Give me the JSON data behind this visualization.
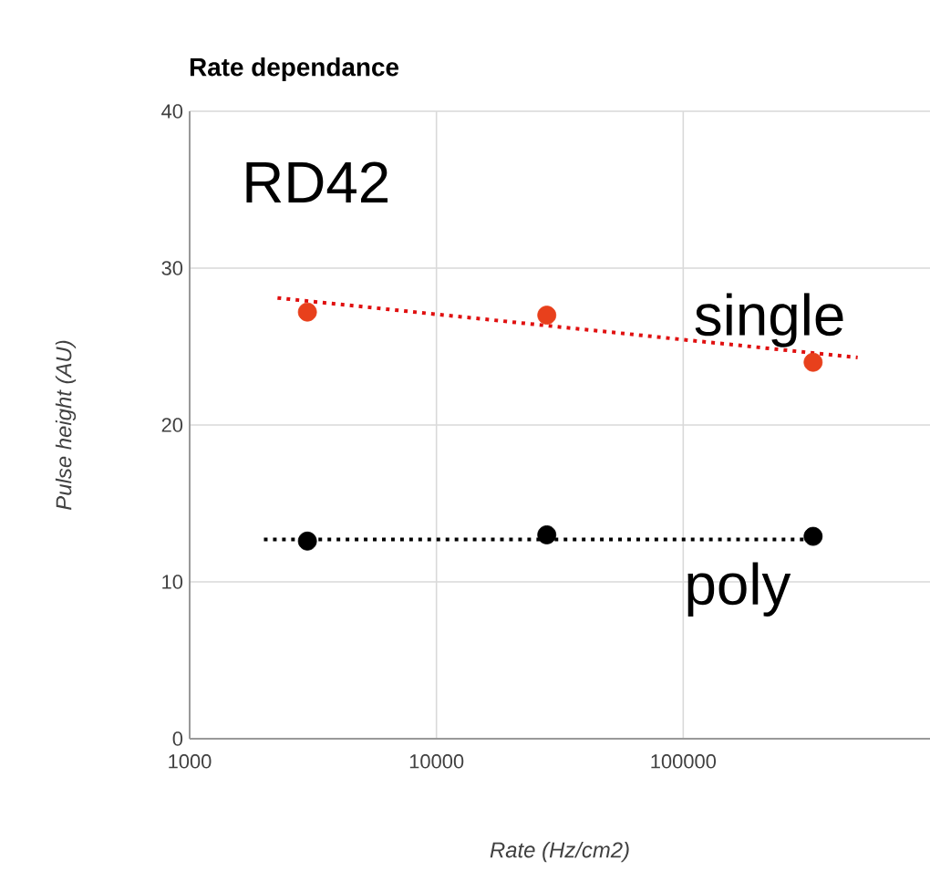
{
  "chart_data": {
    "type": "scatter",
    "title": "Rate dependance",
    "xlabel": "Rate (Hz/cm2)",
    "ylabel": "Pulse height (AU)",
    "annotations": [
      "RD42"
    ],
    "log": "x",
    "xlim": [
      1000,
      1000000
    ],
    "ylim": [
      0,
      40
    ],
    "xticks": [
      1000,
      10000,
      100000
    ],
    "yticks": [
      0,
      10,
      20,
      30,
      40
    ],
    "grid": true,
    "series": [
      {
        "name": "single",
        "marker": "circle",
        "color": "#e8401c",
        "x": [
          3000,
          28000,
          336000
        ],
        "values": [
          27.2,
          27.0,
          24.0
        ]
      },
      {
        "name": "poly",
        "marker": "circle",
        "color": "#000000",
        "x": [
          3000,
          28000,
          336000
        ],
        "values": [
          12.6,
          13.0,
          12.9
        ]
      },
      {
        "type": "line",
        "marker": "none",
        "line_style": "dotted",
        "color": "#e01010",
        "x": [
          2270,
          509000
        ],
        "values": [
          28.1,
          24.3
        ]
      },
      {
        "type": "line",
        "marker": "none",
        "line_style": "dotted",
        "color": "#000000",
        "x": [
          2000,
          340000
        ],
        "values": [
          12.7,
          12.7
        ]
      }
    ]
  }
}
